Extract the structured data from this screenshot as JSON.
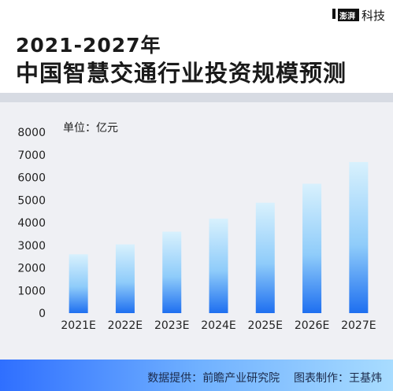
{
  "header": {
    "title_line1": "2021-2027年",
    "title_line2": "中国智慧交通行业投资规模预测",
    "brand_logo_text": "澎湃",
    "brand_name": "科技"
  },
  "footer": {
    "source_label": "数据提供：",
    "source_value": "前瞻产业研究院",
    "maker_label": "图表制作：",
    "maker_value": "王基炜"
  },
  "colors": {
    "bar_bottom": "#1e6ff0",
    "bar_top": "#d8f1fd",
    "panel_bg": "#eff0f4",
    "footer_start": "#2f6fff",
    "footer_end": "#a8dcff"
  },
  "chart_data": {
    "type": "bar",
    "unit_label": "单位：亿元",
    "categories": [
      "2021E",
      "2022E",
      "2023E",
      "2024E",
      "2025E",
      "2026E",
      "2027E"
    ],
    "values": [
      2600,
      3040,
      3600,
      4180,
      4880,
      5720,
      6680
    ],
    "ylim": [
      0,
      8000
    ],
    "yticks": [
      0,
      1000,
      2000,
      3000,
      4000,
      5000,
      6000,
      7000,
      8000
    ],
    "grid": false
  }
}
